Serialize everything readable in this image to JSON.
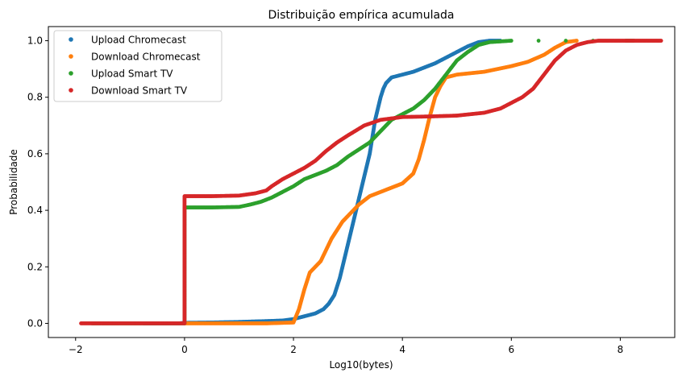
{
  "chart_data": {
    "type": "scatter",
    "title": "Distribuição empírica acumulada",
    "xlabel": "Log10(bytes)",
    "ylabel": "Probabilidade",
    "xlim": [
      -2.5,
      9.0
    ],
    "ylim": [
      -0.05,
      1.05
    ],
    "xticks": [
      -2,
      0,
      2,
      4,
      6,
      8
    ],
    "yticks": [
      0.0,
      0.2,
      0.4,
      0.6,
      0.8,
      1.0
    ],
    "xtick_labels": [
      "−2",
      "0",
      "2",
      "4",
      "6",
      "8"
    ],
    "ytick_labels": [
      "0.0",
      "0.2",
      "0.4",
      "0.6",
      "0.8",
      "1.0"
    ],
    "grid": false,
    "legend_position": "upper-left",
    "series": [
      {
        "name": "Upload Chromecast",
        "color": "#1f77b4",
        "x": [
          -0.75,
          -0.6,
          -0.45,
          -0.3,
          -0.2,
          -0.1,
          0.0,
          0.5,
          1.0,
          1.5,
          1.8,
          2.0,
          2.2,
          2.4,
          2.55,
          2.65,
          2.75,
          2.8,
          2.85,
          2.9,
          3.0,
          3.1,
          3.2,
          3.3,
          3.4,
          3.45,
          3.5,
          3.55,
          3.6,
          3.65,
          3.7,
          3.8,
          3.9,
          4.0,
          4.2,
          4.4,
          4.6,
          4.8,
          5.0,
          5.2,
          5.4,
          5.6,
          5.8
        ],
        "y": [
          0.0,
          0.0,
          0.0,
          0.0,
          0.0,
          0.0,
          0.002,
          0.003,
          0.005,
          0.008,
          0.01,
          0.015,
          0.025,
          0.035,
          0.05,
          0.07,
          0.1,
          0.13,
          0.16,
          0.2,
          0.28,
          0.36,
          0.44,
          0.52,
          0.6,
          0.66,
          0.72,
          0.76,
          0.8,
          0.83,
          0.85,
          0.87,
          0.875,
          0.88,
          0.89,
          0.905,
          0.92,
          0.94,
          0.96,
          0.98,
          0.995,
          1.0,
          1.0
        ]
      },
      {
        "name": "Download Chromecast",
        "color": "#ff7f0e",
        "x": [
          0.0,
          0.5,
          1.0,
          1.5,
          2.0,
          2.1,
          2.2,
          2.3,
          2.4,
          2.5,
          2.6,
          2.7,
          2.8,
          2.9,
          3.0,
          3.2,
          3.4,
          3.6,
          3.8,
          4.0,
          4.2,
          4.3,
          4.4,
          4.5,
          4.6,
          4.7,
          4.8,
          5.0,
          5.5,
          6.0,
          6.3,
          6.6,
          6.8,
          7.0,
          7.2
        ],
        "y": [
          0.0,
          0.0,
          0.0,
          0.0,
          0.003,
          0.05,
          0.12,
          0.18,
          0.2,
          0.22,
          0.26,
          0.3,
          0.33,
          0.36,
          0.38,
          0.42,
          0.45,
          0.465,
          0.48,
          0.495,
          0.53,
          0.58,
          0.65,
          0.73,
          0.8,
          0.84,
          0.87,
          0.88,
          0.89,
          0.91,
          0.925,
          0.95,
          0.975,
          0.995,
          1.0
        ]
      },
      {
        "name": "Upload Smart TV",
        "color": "#2ca02c",
        "x": [
          -1.7,
          -1.55,
          -1.45,
          -0.4,
          -0.2,
          0.0,
          0.0,
          0.5,
          1.0,
          1.2,
          1.4,
          1.6,
          1.8,
          2.0,
          2.2,
          2.4,
          2.6,
          2.8,
          3.0,
          3.2,
          3.4,
          3.6,
          3.8,
          4.0,
          4.2,
          4.4,
          4.6,
          4.8,
          5.0,
          5.2,
          5.4,
          5.6,
          6.0,
          6.5,
          7.0,
          7.5,
          8.1,
          8.25
        ],
        "y": [
          0.0,
          0.0,
          0.0,
          0.0,
          0.0,
          0.0,
          0.41,
          0.41,
          0.412,
          0.42,
          0.43,
          0.445,
          0.465,
          0.485,
          0.51,
          0.525,
          0.54,
          0.56,
          0.59,
          0.615,
          0.64,
          0.68,
          0.72,
          0.74,
          0.76,
          0.79,
          0.83,
          0.88,
          0.93,
          0.96,
          0.985,
          0.995,
          1.0,
          1.0,
          1.0,
          1.0,
          1.0,
          1.0
        ]
      },
      {
        "name": "Download Smart TV",
        "color": "#d62728",
        "x": [
          -1.9,
          -1.2,
          -1.1,
          -1.0,
          -0.8,
          -0.5,
          -0.3,
          -0.15,
          0.0,
          0.0,
          0.5,
          1.0,
          1.3,
          1.5,
          1.6,
          1.8,
          2.0,
          2.2,
          2.4,
          2.6,
          2.8,
          3.0,
          3.3,
          3.6,
          4.0,
          4.5,
          5.0,
          5.5,
          5.8,
          6.0,
          6.2,
          6.4,
          6.6,
          6.8,
          7.0,
          7.2,
          7.4,
          7.6,
          7.8,
          8.0,
          8.3,
          8.5,
          8.75
        ],
        "y": [
          0.0,
          0.0,
          0.0,
          0.0,
          0.0,
          0.0,
          0.0,
          0.0,
          0.0,
          0.45,
          0.45,
          0.452,
          0.46,
          0.47,
          0.485,
          0.51,
          0.53,
          0.55,
          0.575,
          0.61,
          0.64,
          0.665,
          0.7,
          0.72,
          0.73,
          0.732,
          0.735,
          0.745,
          0.76,
          0.78,
          0.8,
          0.83,
          0.88,
          0.93,
          0.965,
          0.985,
          0.995,
          1.0,
          1.0,
          1.0,
          1.0,
          1.0,
          1.0
        ]
      }
    ]
  }
}
